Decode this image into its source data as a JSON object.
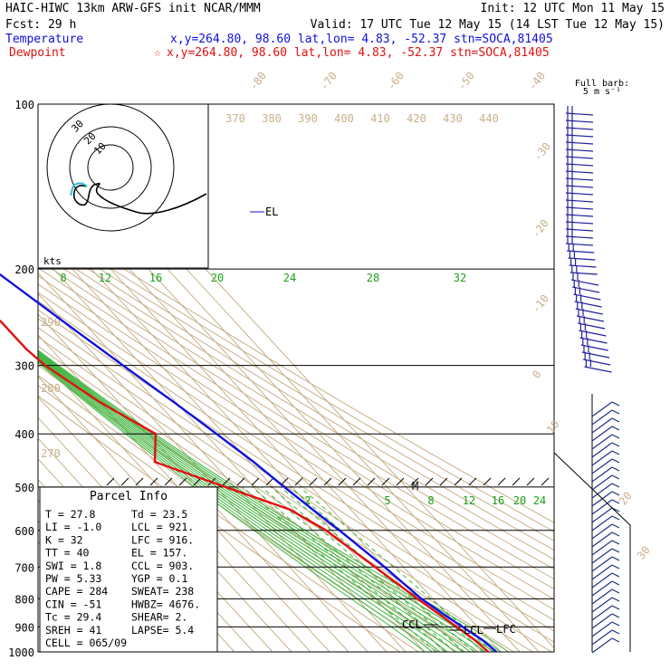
{
  "header": {
    "line1_left": "HAIC-HIWC 13km ARW-GFS init   NCAR/MMM",
    "line1_right": "Init: 12 UTC Mon 11 May 15",
    "line2_left": "Fcst:   29 h",
    "line2_right": "Valid: 17 UTC Tue 12 May 15 (14 LST Tue 12 May 15)",
    "temp_label": "Temperature",
    "temp_info": "x,y=264.80, 98.60   lat,lon=  4.83, -52.37   stn=SOCA,81405",
    "dew_label": "Dewpoint",
    "dew_star": "☆",
    "dew_info": "x,y=264.80, 98.60   lat,lon=  4.83, -52.37   stn=SOCA,81405",
    "barb_title": "Full barb:",
    "barb_unit": "5 m s⁻¹"
  },
  "colors": {
    "temperature": "#1010e0",
    "dewpoint": "#e01010",
    "isotherm": "#c8b08a",
    "mixing": "#1aa01a",
    "hodo": "#000000",
    "hodo_low": "#30c0d0"
  },
  "pressure_labels": [
    "100",
    "200",
    "300",
    "400",
    "500",
    "600",
    "700",
    "800",
    "900",
    "1000"
  ],
  "pressure_levels": [
    100,
    200,
    300,
    400,
    500,
    600,
    700,
    800,
    900,
    1000
  ],
  "isotherm_labels": [
    "-80",
    "-70",
    "-60",
    "-50",
    "-40",
    "-30",
    "-20",
    "-10",
    "0",
    "10",
    "20",
    "30",
    "40"
  ],
  "theta_labels": [
    "370",
    "380",
    "390",
    "400",
    "410",
    "420",
    "430",
    "440"
  ],
  "theta_left_labels": [
    "290",
    "280",
    "270"
  ],
  "mixing_top_labels": [
    "8",
    "12",
    "16",
    "20",
    "24",
    "28",
    "32"
  ],
  "mixing_low_labels": [
    "2",
    "5",
    "8",
    "12",
    "16",
    "20",
    "24"
  ],
  "profile_labels": {
    "el": "EL",
    "m": "M",
    "ccl": "CCL",
    "lcl": "LCL",
    "lfc": "LFC"
  },
  "hodograph": {
    "ring_labels": [
      "30",
      "20",
      "10"
    ],
    "units": "kts"
  },
  "parcel": {
    "title": "Parcel Info",
    "rows": [
      [
        "T  =    27.8",
        "Td =  23.5"
      ],
      [
        "LI =   -1.0",
        "LCL =  921."
      ],
      [
        "K  =      32",
        "LFC =  916."
      ],
      [
        "TT =      40",
        "EL  =  157."
      ],
      [
        "SWI =    1.8",
        "CCL =  903."
      ],
      [
        "PW =  5.33",
        "YGP =   0.1"
      ],
      [
        "CAPE =   284",
        "SWEAT=  238"
      ],
      [
        "CIN =    -51",
        "HWBZ= 4676."
      ],
      [
        "Tc =  29.4",
        "SHEAR=   2."
      ],
      [
        "SREH =    41",
        "LAPSE=  5.4"
      ],
      [
        "CELL = 065/09",
        ""
      ]
    ]
  },
  "chart_data": {
    "type": "line",
    "title": "",
    "y_axis": {
      "label": "",
      "scale": "log",
      "range": [
        1000,
        100
      ],
      "ticks": [
        100,
        200,
        300,
        400,
        500,
        600,
        700,
        800,
        900,
        1000
      ]
    },
    "series": [
      {
        "name": "Temperature",
        "color": "#1010e0",
        "points": [
          [
            100,
            -72
          ],
          [
            150,
            -62
          ],
          [
            200,
            -52
          ],
          [
            250,
            -40
          ],
          [
            300,
            -30
          ],
          [
            350,
            -21
          ],
          [
            400,
            -14
          ],
          [
            450,
            -8
          ],
          [
            500,
            -4
          ],
          [
            550,
            0
          ],
          [
            600,
            4
          ],
          [
            700,
            10
          ],
          [
            750,
            12
          ],
          [
            800,
            14
          ],
          [
            850,
            18
          ],
          [
            900,
            22
          ],
          [
            950,
            26
          ],
          [
            1000,
            27.8
          ]
        ]
      },
      {
        "name": "Dewpoint",
        "color": "#e01010",
        "points": [
          [
            100,
            -80
          ],
          [
            150,
            -88
          ],
          [
            200,
            -80
          ],
          [
            250,
            -73
          ],
          [
            280,
            -73
          ],
          [
            300,
            -71
          ],
          [
            350,
            -60
          ],
          [
            400,
            -46
          ],
          [
            450,
            -60
          ],
          [
            500,
            -35
          ],
          [
            550,
            -12
          ],
          [
            600,
            -3
          ],
          [
            700,
            5
          ],
          [
            800,
            12
          ],
          [
            900,
            19
          ],
          [
            950,
            22
          ],
          [
            1000,
            23.5
          ]
        ]
      }
    ],
    "annotations": {
      "EL_hPa": 157,
      "LCL_hPa": 921,
      "LFC_hPa": 916,
      "CCL_hPa": 903,
      "M_hPa": 500
    }
  }
}
